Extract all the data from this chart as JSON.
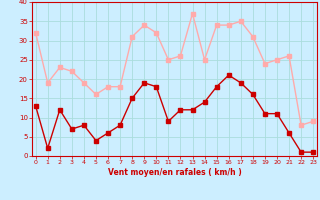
{
  "x": [
    0,
    1,
    2,
    3,
    4,
    5,
    6,
    7,
    8,
    9,
    10,
    11,
    12,
    13,
    14,
    15,
    16,
    17,
    18,
    19,
    20,
    21,
    22,
    23
  ],
  "wind_avg": [
    13,
    2,
    12,
    7,
    8,
    4,
    6,
    8,
    15,
    19,
    18,
    9,
    12,
    12,
    14,
    18,
    21,
    19,
    16,
    11,
    11,
    6,
    1,
    1
  ],
  "wind_gust": [
    32,
    19,
    23,
    22,
    19,
    16,
    18,
    18,
    31,
    34,
    32,
    25,
    26,
    37,
    25,
    34,
    34,
    35,
    31,
    24,
    25,
    26,
    8,
    9
  ],
  "avg_color": "#cc0000",
  "gust_color": "#ffaaaa",
  "bg_color": "#cceeff",
  "grid_color": "#aadddd",
  "xlabel": "Vent moyen/en rafales ( km/h )",
  "ylim": [
    0,
    40
  ],
  "yticks": [
    0,
    5,
    10,
    15,
    20,
    25,
    30,
    35,
    40
  ],
  "xlim": [
    -0.3,
    23.3
  ],
  "xticks": [
    0,
    1,
    2,
    3,
    4,
    5,
    6,
    7,
    8,
    9,
    10,
    11,
    12,
    13,
    14,
    15,
    16,
    17,
    18,
    19,
    20,
    21,
    22,
    23
  ],
  "markersize": 2.5,
  "linewidth": 1.0
}
